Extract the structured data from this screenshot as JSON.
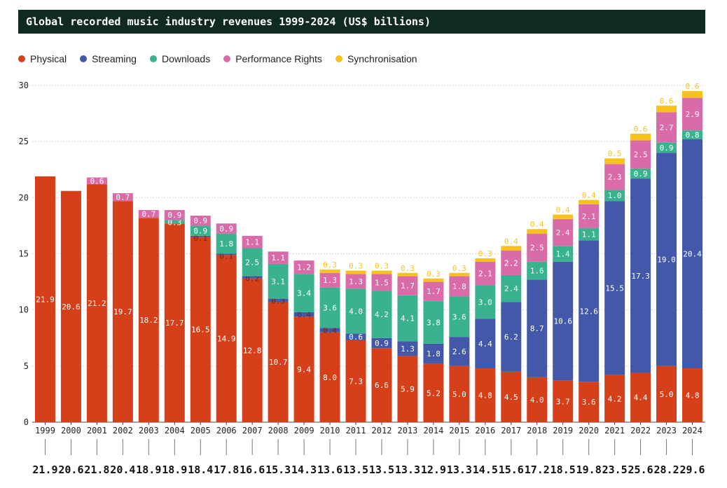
{
  "colors": {
    "physical": "#d5401a",
    "streaming": "#4358a8",
    "downloads": "#3bb28f",
    "performance_rights": "#d96ca8",
    "synchronisation": "#f6c21b",
    "title_bg": "#0f2a22"
  },
  "chart_data": {
    "type": "bar",
    "stacked": true,
    "title": "Global recorded music industry revenues 1999-2024 (US$ billions)",
    "xlabel": "",
    "ylabel": "",
    "ylim": [
      0,
      30
    ],
    "yticks": [
      "0",
      "5",
      "10",
      "15",
      "20",
      "25",
      "30"
    ],
    "grid": true,
    "legend_position": "top-left",
    "categories": [
      "1999",
      "2000",
      "2001",
      "2002",
      "2003",
      "2004",
      "2005",
      "2006",
      "2007",
      "2008",
      "2009",
      "2010",
      "2011",
      "2012",
      "2013",
      "2014",
      "2015",
      "2016",
      "2017",
      "2018",
      "2019",
      "2020",
      "2021",
      "2022",
      "2023",
      "2024"
    ],
    "totals": [
      "21.9",
      "20.6",
      "21.8",
      "20.4",
      "18.9",
      "18.9",
      "18.4",
      "17.8",
      "16.6",
      "15.3",
      "14.3",
      "13.6",
      "13.5",
      "13.5",
      "13.3",
      "12.9",
      "13.3",
      "14.5",
      "15.6",
      "17.2",
      "18.5",
      "19.8",
      "23.5",
      "25.6",
      "28.2",
      "29.6"
    ],
    "series": [
      {
        "key": "physical",
        "name": "Physical",
        "values": [
          21.9,
          20.6,
          21.2,
          19.7,
          18.2,
          17.7,
          16.5,
          14.9,
          12.8,
          10.7,
          9.4,
          8.0,
          7.3,
          6.6,
          5.9,
          5.2,
          5.0,
          4.8,
          4.5,
          4.0,
          3.7,
          3.6,
          4.2,
          4.4,
          5.0,
          4.8
        ],
        "labels": [
          "21.9",
          "20.6",
          "21.2",
          "19.7",
          "18.2",
          "17.7",
          "16.5",
          "14.9",
          "12.8",
          "10.7",
          "9.4",
          "8.0",
          "7.3",
          "6.6",
          "5.9",
          "5.2",
          "5.0",
          "4.8",
          "4.5",
          "4.0",
          "3.7",
          "3.6",
          "4.2",
          "4.4",
          "5.0",
          "4.8"
        ]
      },
      {
        "key": "streaming",
        "name": "Streaming",
        "values": [
          0,
          0,
          0,
          0,
          0,
          0,
          0.1,
          0.1,
          0.2,
          0.3,
          0.4,
          0.4,
          0.6,
          0.9,
          1.3,
          1.8,
          2.6,
          4.4,
          6.2,
          8.7,
          10.6,
          12.6,
          15.5,
          17.3,
          19.0,
          20.4
        ],
        "labels": [
          "",
          "",
          "",
          "",
          "",
          "",
          "0.1",
          "0.1",
          "0.2",
          "0.3",
          "0.4",
          "0.4",
          "0.6",
          "0.9",
          "1.3",
          "1.8",
          "2.6",
          "4.4",
          "6.2",
          "8.7",
          "10.6",
          "12.6",
          "15.5",
          "17.3",
          "19.0",
          "20.4"
        ]
      },
      {
        "key": "downloads",
        "name": "Downloads",
        "values": [
          0,
          0,
          0,
          0,
          0,
          0.3,
          0.9,
          1.8,
          2.5,
          3.1,
          3.4,
          3.6,
          4.0,
          4.2,
          4.1,
          3.8,
          3.6,
          3.0,
          2.4,
          1.6,
          1.4,
          1.1,
          1.0,
          0.9,
          0.9,
          0.8
        ],
        "labels": [
          "",
          "",
          "",
          "",
          "",
          "0.3",
          "0.9",
          "1.8",
          "2.5",
          "3.1",
          "3.4",
          "3.6",
          "4.0",
          "4.2",
          "4.1",
          "3.8",
          "3.6",
          "3.0",
          "2.4",
          "1.6",
          "1.4",
          "1.1",
          "1.0",
          "0.9",
          "0.9",
          "0.8"
        ]
      },
      {
        "key": "performance_rights",
        "name": "Performance Rights",
        "values": [
          0,
          0,
          0.6,
          0.7,
          0.7,
          0.9,
          0.9,
          0.9,
          1.1,
          1.1,
          1.2,
          1.3,
          1.3,
          1.5,
          1.7,
          1.7,
          1.8,
          2.1,
          2.2,
          2.5,
          2.4,
          2.1,
          2.3,
          2.5,
          2.7,
          2.9
        ],
        "labels": [
          "",
          "",
          "0.6",
          "0.7",
          "0.7",
          "0.9",
          "0.9",
          "0.9",
          "1.1",
          "1.1",
          "1.2",
          "1.3",
          "1.3",
          "1.5",
          "1.7",
          "1.7",
          "1.8",
          "2.1",
          "2.2",
          "2.5",
          "2.4",
          "2.1",
          "2.3",
          "2.5",
          "2.7",
          "2.9"
        ]
      },
      {
        "key": "synchronisation",
        "name": "Synchronisation",
        "values": [
          0,
          0,
          0,
          0,
          0,
          0,
          0,
          0,
          0,
          0,
          0,
          0.3,
          0.3,
          0.3,
          0.3,
          0.3,
          0.3,
          0.3,
          0.4,
          0.4,
          0.4,
          0.4,
          0.5,
          0.6,
          0.6,
          0.6
        ],
        "labels": [
          "",
          "",
          "",
          "",
          "",
          "",
          "",
          "",
          "",
          "",
          "",
          "0.3",
          "0.3",
          "0.3",
          "0.3",
          "0.3",
          "0.3",
          "0.3",
          "0.4",
          "0.4",
          "0.4",
          "0.4",
          "0.5",
          "0.6",
          "0.6",
          "0.6"
        ]
      }
    ]
  }
}
